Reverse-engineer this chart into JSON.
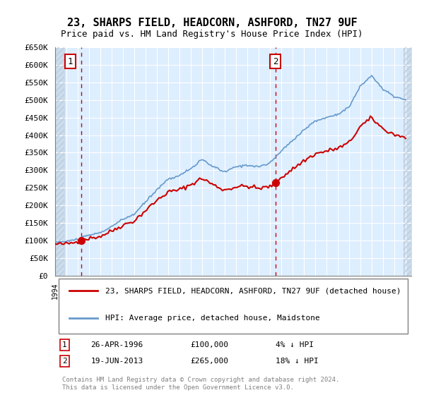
{
  "title": "23, SHARPS FIELD, HEADCORN, ASHFORD, TN27 9UF",
  "subtitle": "Price paid vs. HM Land Registry's House Price Index (HPI)",
  "legend_line1": "23, SHARPS FIELD, HEADCORN, ASHFORD, TN27 9UF (detached house)",
  "legend_line2": "HPI: Average price, detached house, Maidstone",
  "footnote": "Contains HM Land Registry data © Crown copyright and database right 2024.\nThis data is licensed under the Open Government Licence v3.0.",
  "transaction1_label": "1",
  "transaction1_date": "26-APR-1996",
  "transaction1_price": 100000,
  "transaction1_pct": "4% ↓ HPI",
  "transaction2_label": "2",
  "transaction2_date": "19-JUN-2013",
  "transaction2_price": 265000,
  "transaction2_pct": "18% ↓ HPI",
  "line_color_property": "#cc0000",
  "line_color_hpi": "#6699cc",
  "marker_color": "#cc0000",
  "bg_color": "#ddeeff",
  "hatch_color": "#bbccdd",
  "ylim": [
    0,
    650000
  ],
  "xlim_start": 1994.0,
  "xlim_end": 2025.5
}
